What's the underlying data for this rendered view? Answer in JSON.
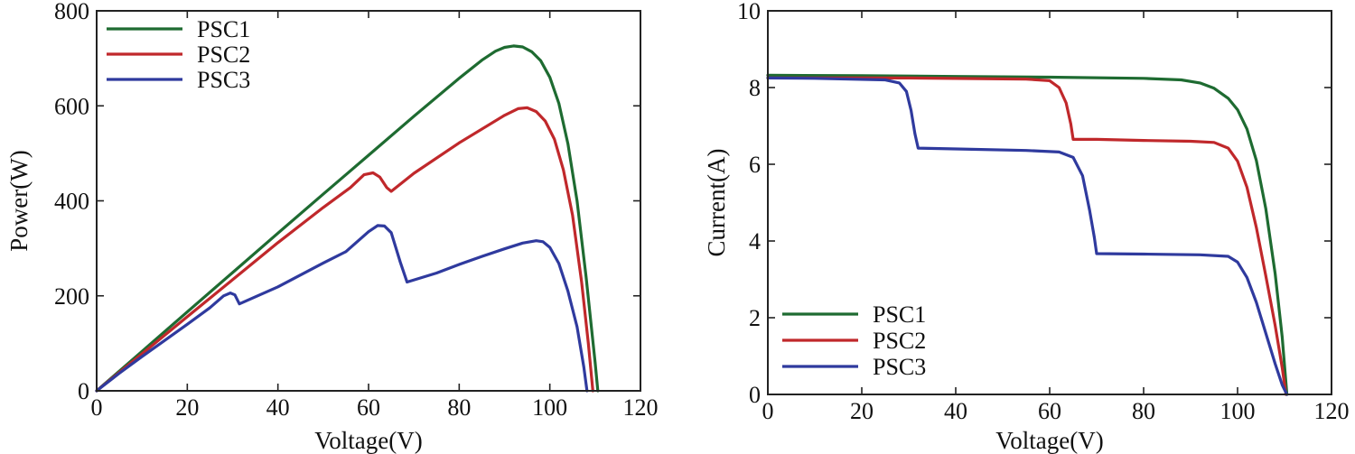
{
  "chart_data": [
    {
      "type": "line",
      "title": "",
      "xlabel": "Voltage(V)",
      "ylabel": "Power(W)",
      "xlim": [
        0,
        120
      ],
      "ylim": [
        0,
        800
      ],
      "xticks": [
        "0",
        "20",
        "40",
        "60",
        "80",
        "100",
        "120"
      ],
      "yticks": [
        "0",
        "200",
        "400",
        "600",
        "800"
      ],
      "grid": false,
      "legend_position": "top-left",
      "series": [
        {
          "name": "PSC1",
          "color": "#1e6b31",
          "points": [
            [
              0,
              0
            ],
            [
              10,
              83
            ],
            [
              20,
              166
            ],
            [
              30,
              249
            ],
            [
              40,
              332
            ],
            [
              50,
              414
            ],
            [
              60,
              496
            ],
            [
              70,
              578
            ],
            [
              80,
              658
            ],
            [
              85,
              696
            ],
            [
              88,
              715
            ],
            [
              90,
              723
            ],
            [
              92,
              726
            ],
            [
              94,
              724
            ],
            [
              96,
              714
            ],
            [
              98,
              695
            ],
            [
              100,
              660
            ],
            [
              102,
              605
            ],
            [
              104,
              520
            ],
            [
              106,
              400
            ],
            [
              108,
              240
            ],
            [
              110,
              60
            ],
            [
              110.6,
              0
            ]
          ]
        },
        {
          "name": "PSC2",
          "color": "#c0282b",
          "points": [
            [
              0,
              0
            ],
            [
              10,
              78
            ],
            [
              20,
              156
            ],
            [
              30,
              234
            ],
            [
              40,
              312
            ],
            [
              50,
              386
            ],
            [
              56,
              428
            ],
            [
              59,
              455
            ],
            [
              61,
              459
            ],
            [
              62.5,
              450
            ],
            [
              64,
              428
            ],
            [
              65,
              420
            ],
            [
              70,
              458
            ],
            [
              80,
              522
            ],
            [
              90,
              580
            ],
            [
              93,
              594
            ],
            [
              95,
              596
            ],
            [
              97,
              588
            ],
            [
              99,
              568
            ],
            [
              101,
              530
            ],
            [
              103,
              465
            ],
            [
              105,
              370
            ],
            [
              107,
              230
            ],
            [
              108.5,
              100
            ],
            [
              109.5,
              0
            ]
          ]
        },
        {
          "name": "PSC3",
          "color": "#2f3a9e",
          "points": [
            [
              0,
              0
            ],
            [
              5,
              37
            ],
            [
              10,
              72
            ],
            [
              15,
              106
            ],
            [
              20,
              140
            ],
            [
              25,
              175
            ],
            [
              28,
              200
            ],
            [
              29.5,
              206
            ],
            [
              30.5,
              202
            ],
            [
              31.5,
              183
            ],
            [
              40,
              219
            ],
            [
              50,
              269
            ],
            [
              55,
              293
            ],
            [
              60,
              335
            ],
            [
              62,
              348
            ],
            [
              63.5,
              347
            ],
            [
              65,
              333
            ],
            [
              67,
              271
            ],
            [
              68.5,
              229
            ],
            [
              75,
              248
            ],
            [
              80,
              266
            ],
            [
              85,
              283
            ],
            [
              90,
              299
            ],
            [
              94,
              311
            ],
            [
              97,
              316
            ],
            [
              98.5,
              314
            ],
            [
              100,
              302
            ],
            [
              102,
              268
            ],
            [
              104,
              210
            ],
            [
              106,
              135
            ],
            [
              107.5,
              50
            ],
            [
              108.2,
              0
            ]
          ]
        }
      ]
    },
    {
      "type": "line",
      "title": "",
      "xlabel": "Voltage(V)",
      "ylabel": "Current(A)",
      "xlim": [
        0,
        120
      ],
      "ylim": [
        0,
        10
      ],
      "xticks": [
        "0",
        "20",
        "40",
        "60",
        "80",
        "100",
        "120"
      ],
      "yticks": [
        "0",
        "2",
        "4",
        "6",
        "8",
        "10"
      ],
      "grid": false,
      "legend_position": "bottom-left",
      "series": [
        {
          "name": "PSC1",
          "color": "#1e6b31",
          "points": [
            [
              0,
              8.32
            ],
            [
              20,
              8.31
            ],
            [
              40,
              8.29
            ],
            [
              60,
              8.27
            ],
            [
              80,
              8.24
            ],
            [
              88,
              8.2
            ],
            [
              92,
              8.12
            ],
            [
              95,
              7.98
            ],
            [
              98,
              7.72
            ],
            [
              100,
              7.42
            ],
            [
              102,
              6.92
            ],
            [
              104,
              6.1
            ],
            [
              106,
              4.85
            ],
            [
              108,
              3.15
            ],
            [
              109.5,
              1.5
            ],
            [
              110.5,
              0
            ]
          ]
        },
        {
          "name": "PSC2",
          "color": "#c0282b",
          "points": [
            [
              0,
              8.25
            ],
            [
              30,
              8.25
            ],
            [
              55,
              8.22
            ],
            [
              60,
              8.18
            ],
            [
              62,
              8.0
            ],
            [
              63.5,
              7.6
            ],
            [
              64.5,
              7.05
            ],
            [
              65,
              6.65
            ],
            [
              70,
              6.65
            ],
            [
              80,
              6.62
            ],
            [
              90,
              6.6
            ],
            [
              95,
              6.57
            ],
            [
              98,
              6.42
            ],
            [
              100,
              6.08
            ],
            [
              102,
              5.4
            ],
            [
              104,
              4.35
            ],
            [
              106,
              3.1
            ],
            [
              108,
              1.8
            ],
            [
              109.5,
              0.7
            ],
            [
              110.3,
              0
            ]
          ]
        },
        {
          "name": "PSC3",
          "color": "#2f3a9e",
          "points": [
            [
              0,
              8.25
            ],
            [
              10,
              8.24
            ],
            [
              25,
              8.2
            ],
            [
              28,
              8.12
            ],
            [
              29.5,
              7.9
            ],
            [
              30.5,
              7.4
            ],
            [
              31.3,
              6.8
            ],
            [
              32,
              6.42
            ],
            [
              40,
              6.4
            ],
            [
              55,
              6.36
            ],
            [
              62,
              6.32
            ],
            [
              65,
              6.18
            ],
            [
              67,
              5.7
            ],
            [
              68.5,
              4.8
            ],
            [
              69.5,
              4.1
            ],
            [
              70,
              3.67
            ],
            [
              80,
              3.66
            ],
            [
              92,
              3.64
            ],
            [
              98,
              3.6
            ],
            [
              100,
              3.45
            ],
            [
              102,
              3.05
            ],
            [
              104,
              2.4
            ],
            [
              106,
              1.6
            ],
            [
              108,
              0.8
            ],
            [
              109.5,
              0.25
            ],
            [
              110.5,
              0
            ]
          ]
        }
      ]
    }
  ]
}
